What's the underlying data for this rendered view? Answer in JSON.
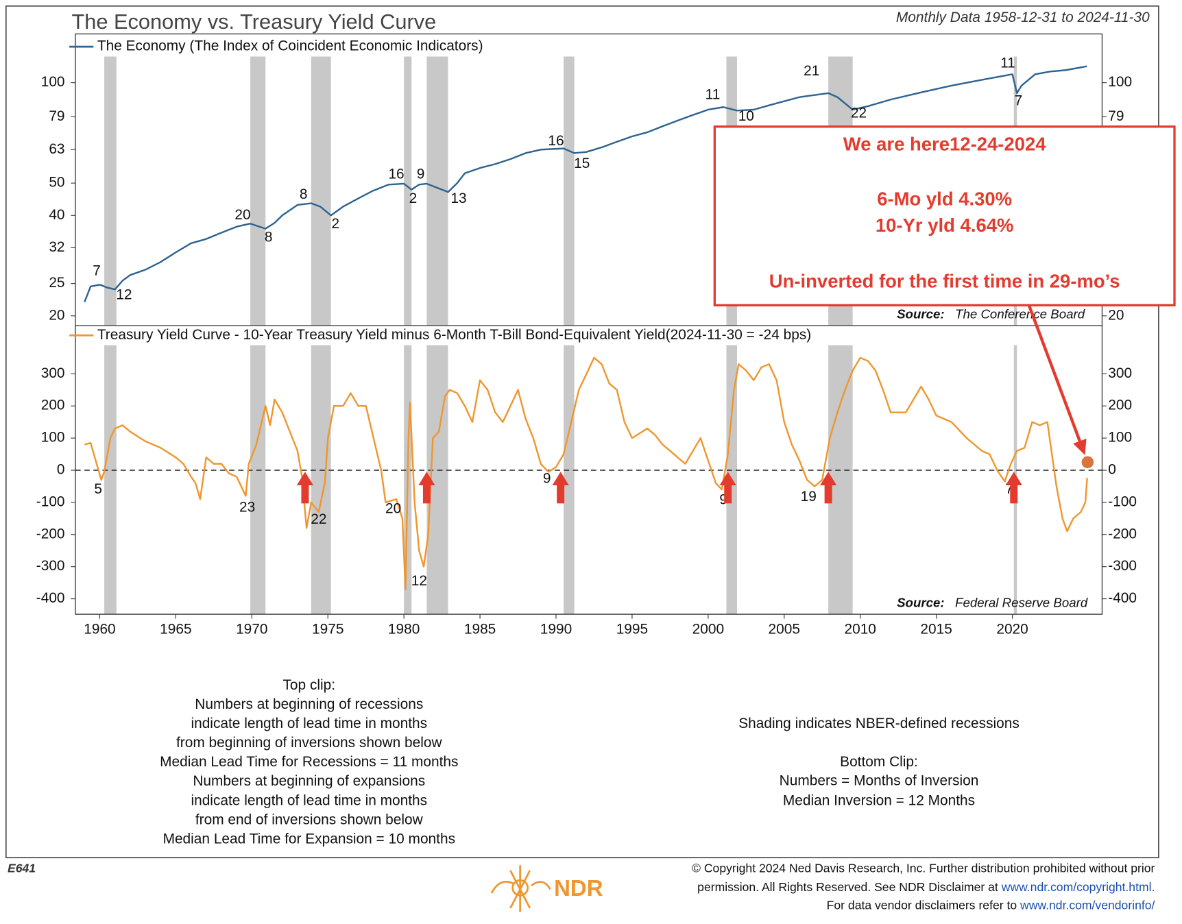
{
  "title": "The Economy vs. Treasury Yield Curve",
  "subtitle": "Monthly Data 1958-12-31 to 2024-11-30",
  "recessions": [
    [
      1960.3,
      1961.1
    ],
    [
      1969.9,
      1970.9
    ],
    [
      1973.9,
      1975.2
    ],
    [
      1980.0,
      1980.5
    ],
    [
      1981.5,
      1982.9
    ],
    [
      1990.5,
      1991.2
    ],
    [
      2001.2,
      2001.9
    ],
    [
      2007.9,
      2009.5
    ],
    [
      2020.1,
      2020.3
    ]
  ],
  "chart_data": [
    {
      "type": "line",
      "log_scale": true,
      "xlim": [
        1958.4,
        2025.9
      ],
      "ylim": [
        18.7,
        140
      ],
      "yticks": [
        20,
        25,
        32,
        40,
        50,
        63,
        79,
        100
      ],
      "source_label": "Source:",
      "source": "The Conference Board",
      "x": [
        1959.0,
        1959.4,
        1960.0,
        1960.5,
        1961.0,
        1961.5,
        1962,
        1963,
        1964,
        1965,
        1966,
        1967,
        1968,
        1969,
        1969.9,
        1970.9,
        1971.5,
        1972,
        1973,
        1973.9,
        1974.5,
        1975.2,
        1976,
        1977,
        1978,
        1979,
        1980.0,
        1980.5,
        1981.0,
        1981.5,
        1982.9,
        1983.5,
        1984,
        1985,
        1986,
        1987,
        1988,
        1989,
        1990.5,
        1991.2,
        1992,
        1993,
        1994,
        1995,
        1996,
        1997,
        1998,
        1999,
        2000,
        2001.0,
        2001.9,
        2003,
        2004,
        2005,
        2006,
        2007.9,
        2008.5,
        2009.5,
        2010.5,
        2012,
        2014,
        2016,
        2018,
        2020.0,
        2020.3,
        2020.6,
        2021.5,
        2022.5,
        2023.5,
        2024.9
      ],
      "series": [
        {
          "name": "The Economy (The Index of Coincident Economic Indicators)",
          "color": "#2e6391",
          "values": [
            22,
            24.5,
            24.8,
            24.3,
            24,
            25.5,
            26.5,
            27.5,
            29,
            31,
            33,
            34,
            35.5,
            37,
            37.8,
            36.5,
            38,
            40,
            43,
            43.5,
            42.5,
            40,
            42.5,
            45,
            47.5,
            49.5,
            49.8,
            47.8,
            49.5,
            49.8,
            47,
            50,
            53.5,
            55.5,
            57,
            59,
            61.5,
            63,
            63.5,
            61.5,
            62,
            64,
            66.5,
            69,
            71,
            74,
            77,
            80,
            83,
            84.5,
            82.5,
            83,
            85.5,
            88,
            90.5,
            93,
            90.5,
            83,
            85,
            89,
            93.5,
            98,
            102,
            106,
            93,
            98,
            106,
            108,
            109,
            112
          ]
        }
      ],
      "annotations": [
        {
          "text": "7",
          "x": 1959.8,
          "y": 27.2
        },
        {
          "text": "12",
          "x": 1961.6,
          "y": 23
        },
        {
          "text": "20",
          "x": 1969.4,
          "y": 40
        },
        {
          "text": "8",
          "x": 1971.1,
          "y": 34.3
        },
        {
          "text": "8",
          "x": 1973.4,
          "y": 46.1
        },
        {
          "text": "2",
          "x": 1975.5,
          "y": 37.6
        },
        {
          "text": "16",
          "x": 1979.5,
          "y": 53
        },
        {
          "text": "9",
          "x": 1981.1,
          "y": 53
        },
        {
          "text": "2",
          "x": 1980.6,
          "y": 44.8
        },
        {
          "text": "13",
          "x": 1983.6,
          "y": 44.8
        },
        {
          "text": "16",
          "x": 1990.0,
          "y": 66.6
        },
        {
          "text": "15",
          "x": 1991.7,
          "y": 57
        },
        {
          "text": "11",
          "x": 2000.3,
          "y": 91.7
        },
        {
          "text": "10",
          "x": 2002.5,
          "y": 79
        },
        {
          "text": "21",
          "x": 2006.8,
          "y": 108
        },
        {
          "text": "22",
          "x": 2009.9,
          "y": 80.7
        },
        {
          "text": "11",
          "x": 2019.7,
          "y": 114
        },
        {
          "text": "7",
          "x": 2020.4,
          "y": 87.8
        }
      ]
    },
    {
      "type": "line",
      "log_scale": false,
      "xlim": [
        1958.4,
        2025.9
      ],
      "xticks": [
        1960,
        1965,
        1970,
        1975,
        1980,
        1985,
        1990,
        1995,
        2000,
        2005,
        2010,
        2015,
        2020
      ],
      "ylim": [
        -448,
        450
      ],
      "yticks": [
        -400,
        -300,
        -200,
        -100,
        0,
        100,
        200,
        300
      ],
      "zero_line": true,
      "source_label": "Source:",
      "source": "Federal Reserve Board",
      "x": [
        1959.0,
        1959.4,
        1959.8,
        1960.1,
        1960.3,
        1960.7,
        1961.0,
        1961.5,
        1962,
        1963,
        1964,
        1965,
        1965.5,
        1966.0,
        1966.3,
        1966.6,
        1967.0,
        1967.5,
        1968.0,
        1968.5,
        1969.0,
        1969.6,
        1969.8,
        1970.3,
        1970.9,
        1971.2,
        1971.5,
        1972,
        1972.5,
        1973.0,
        1973.3,
        1973.6,
        1973.9,
        1974.4,
        1974.8,
        1975.0,
        1975.4,
        1976,
        1976.5,
        1977,
        1977.5,
        1978,
        1978.5,
        1978.8,
        1979.5,
        1979.9,
        1980.1,
        1980.3,
        1980.4,
        1980.7,
        1981.0,
        1981.3,
        1981.6,
        1981.9,
        1982.3,
        1982.7,
        1983,
        1983.5,
        1984,
        1984.5,
        1985,
        1985.5,
        1986,
        1986.5,
        1987,
        1987.5,
        1988,
        1988.5,
        1989,
        1989.5,
        1990,
        1990.5,
        1991,
        1991.5,
        1992,
        1992.5,
        1993,
        1993.5,
        1994,
        1994.5,
        1995,
        1996,
        1996.5,
        1997,
        1997.5,
        1998,
        1998.5,
        1999,
        1999.5,
        2000,
        2000.5,
        2000.9,
        2001.3,
        2001.7,
        2002,
        2002.5,
        2003,
        2003.5,
        2004,
        2004.5,
        2005,
        2005.5,
        2006,
        2006.5,
        2007,
        2007.5,
        2008,
        2008.5,
        2009,
        2009.5,
        2010,
        2010.5,
        2011,
        2011.5,
        2012,
        2013,
        2014,
        2014.5,
        2015,
        2016,
        2017,
        2018,
        2018.5,
        2019,
        2019.5,
        2019.9,
        2020.3,
        2020.8,
        2021.3,
        2021.8,
        2022.3,
        2022.6,
        2022.9,
        2023.3,
        2023.6,
        2024.0,
        2024.5,
        2024.8,
        2024.92
      ],
      "series": [
        {
          "name": "Treasury Yield Curve - 10-Year Treasury Yield minus 6-Month T-Bill Bond-Equivalent Yield(2024-11-30 = -24 bps)",
          "color": "#f0962e",
          "values": [
            80,
            85,
            20,
            -30,
            -5,
            100,
            130,
            140,
            120,
            90,
            70,
            40,
            20,
            -20,
            -40,
            -90,
            40,
            20,
            20,
            -10,
            -20,
            -80,
            20,
            80,
            200,
            140,
            220,
            180,
            120,
            60,
            -20,
            -180,
            -100,
            -130,
            -40,
            100,
            200,
            200,
            240,
            200,
            200,
            100,
            0,
            -100,
            -90,
            -150,
            -370,
            100,
            210,
            -100,
            -250,
            -300,
            -200,
            100,
            120,
            230,
            250,
            240,
            200,
            150,
            280,
            250,
            180,
            150,
            200,
            250,
            160,
            100,
            20,
            -5,
            10,
            50,
            150,
            250,
            300,
            350,
            330,
            270,
            250,
            150,
            100,
            130,
            110,
            80,
            60,
            40,
            20,
            60,
            100,
            30,
            -40,
            -60,
            50,
            250,
            330,
            310,
            280,
            320,
            330,
            280,
            150,
            80,
            30,
            -30,
            -50,
            -30,
            100,
            180,
            250,
            310,
            350,
            340,
            310,
            250,
            180,
            180,
            260,
            220,
            170,
            150,
            100,
            60,
            50,
            0,
            -35,
            20,
            60,
            70,
            150,
            140,
            150,
            50,
            -50,
            -150,
            -190,
            -150,
            -130,
            -100,
            -24
          ]
        }
      ],
      "annotations": [
        {
          "text": "5",
          "x": 1959.9,
          "y": -61
        },
        {
          "text": "23",
          "x": 1969.7,
          "y": -117
        },
        {
          "text": "22",
          "x": 1974.4,
          "y": -155
        },
        {
          "text": "20",
          "x": 1979.3,
          "y": -122
        },
        {
          "text": "12",
          "x": 1981.0,
          "y": -347
        },
        {
          "text": "9",
          "x": 1989.4,
          "y": -28
        },
        {
          "text": "9",
          "x": 2001.0,
          "y": -94
        },
        {
          "text": "19",
          "x": 2006.6,
          "y": -84
        },
        {
          "text": "7",
          "x": 2019.8,
          "y": -61
        }
      ],
      "arrows_x": [
        1973.5,
        1981.5,
        1990.3,
        2001.3,
        2007.9,
        2020.1
      ]
    }
  ],
  "callout": {
    "lines": [
      "We are here12-24-2024",
      "6-Mo yld 4.30%",
      "10-Yr yld 4.64%",
      "Un-inverted for the first time in 29-mo’s"
    ],
    "point": {
      "x": 2024.95,
      "y": 25
    }
  },
  "notes_left": [
    "Top clip:",
    "Numbers at beginning of recessions",
    "indicate length of lead time in months",
    "from beginning of inversions shown below",
    "Median Lead Time for Recessions = 11 months",
    "Numbers at beginning of expansions",
    "indicate length of lead time in months",
    "from end of inversions shown below",
    "Median Lead Time for Expansion = 10 months"
  ],
  "notes_right": [
    "Shading indicates NBER-defined recessions",
    "Bottom Clip:",
    "Numbers = Months of Inversion",
    "Median Inversion = 12 Months"
  ],
  "footer": {
    "code": "E641",
    "logo": "NDR",
    "line1": "© Copyright 2024 Ned Davis Research, Inc. Further distribution prohibited without prior",
    "line2": "permission. All Rights Reserved. See NDR Disclaimer at ",
    "link1": "www.ndr.com/copyright.html.",
    "line3": "For data vendor disclaimers refer to ",
    "link2": "www.ndr.com/vendorinfo/"
  }
}
